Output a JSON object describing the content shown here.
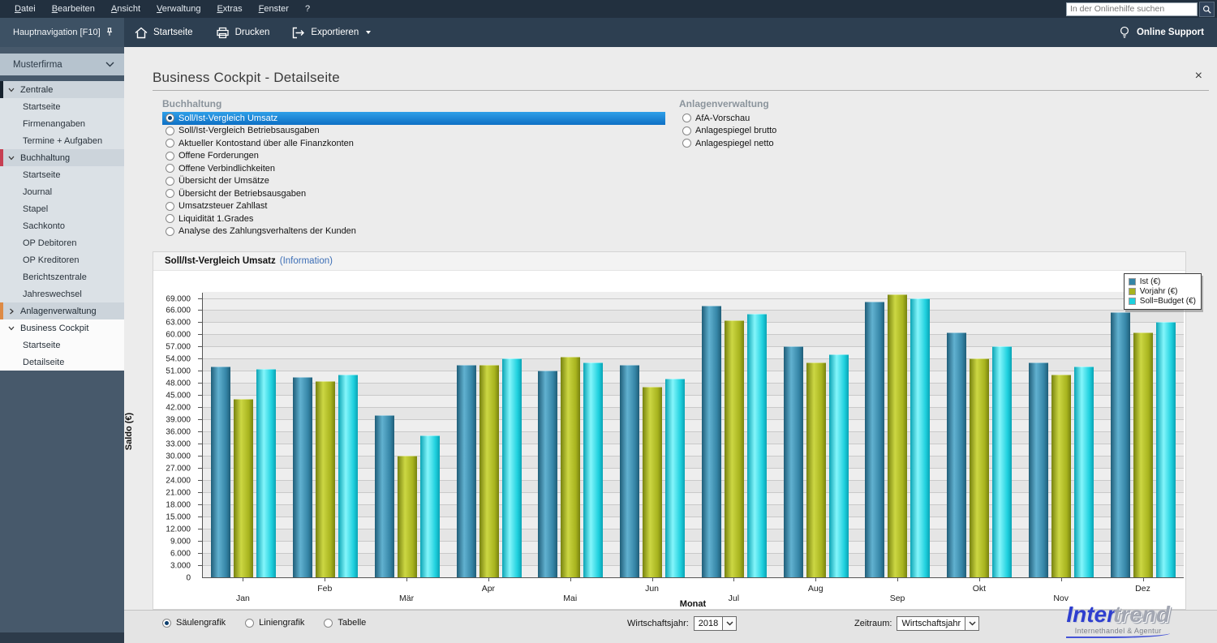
{
  "menubar": {
    "items": [
      "Datei",
      "Bearbeiten",
      "Ansicht",
      "Verwaltung",
      "Extras",
      "Fenster",
      "?"
    ],
    "search_placeholder": "In der Onlinehilfe suchen"
  },
  "toolbar": {
    "hauptnavigation_label": "Hauptnavigation [F10]",
    "startseite_label": "Startseite",
    "drucken_label": "Drucken",
    "exportieren_label": "Exportieren",
    "online_support_label": "Online Support"
  },
  "sidebar": {
    "company": "Musterfirma",
    "sections": [
      {
        "label": "Zentrale",
        "expanded": true,
        "accent": "#16222e",
        "highlight": false,
        "items": [
          "Startseite",
          "Firmenangaben",
          "Termine + Aufgaben"
        ]
      },
      {
        "label": "Buchhaltung",
        "expanded": true,
        "accent": "#c63f52",
        "highlight": false,
        "items": [
          "Startseite",
          "Journal",
          "Stapel",
          "Sachkonto",
          "OP Debitoren",
          "OP Kreditoren",
          "Berichtszentrale",
          "Jahreswechsel"
        ]
      },
      {
        "label": "Anlagenverwaltung",
        "expanded": false,
        "accent": "#dd8a45",
        "highlight": false,
        "items": []
      },
      {
        "label": "Business Cockpit",
        "expanded": true,
        "accent": "",
        "highlight": true,
        "items": [
          "Startseite",
          "Detailseite"
        ]
      }
    ]
  },
  "content": {
    "title": "Business Cockpit - Detailseite",
    "close_label": "×",
    "groups": [
      {
        "title": "Buchhaltung",
        "selected_index": 0,
        "options": [
          "Soll/Ist-Vergleich Umsatz",
          "Soll/Ist-Vergleich Betriebsausgaben",
          "Aktueller Kontostand über alle Finanzkonten",
          "Offene Forderungen",
          "Offene Verbindlichkeiten",
          "Übersicht der Umsätze",
          "Übersicht der Betriebsausgaben",
          "Umsatzsteuer Zahllast",
          "Liquidität 1.Grades",
          "Analyse des Zahlungsverhaltens der Kunden"
        ]
      },
      {
        "title": "Anlagenverwaltung",
        "selected_index": -1,
        "options": [
          "AfA-Vorschau",
          "Anlagespiegel brutto",
          "Anlagespiegel netto"
        ]
      }
    ],
    "panel_title": "Soll/Ist-Vergleich Umsatz",
    "panel_link": "(Information)"
  },
  "chart_data": {
    "type": "bar",
    "title": "Soll/Ist-Vergleich Umsatz",
    "xlabel": "Monat",
    "ylabel": "Saldo (€)",
    "ylim": [
      0,
      70500
    ],
    "ytick_step": 3000,
    "ytick_max": 69000,
    "grid": true,
    "legend_position": "top-right",
    "categories": [
      "Jan",
      "Feb",
      "Mär",
      "Apr",
      "Mai",
      "Jun",
      "Jul",
      "Aug",
      "Sep",
      "Okt",
      "Nov",
      "Dez"
    ],
    "series": [
      {
        "name": "Ist (€)",
        "color": "#3585a6",
        "color_light": "#61b1d0",
        "color_dark": "#1f5d78",
        "values": [
          52000,
          49500,
          40000,
          52500,
          51000,
          52500,
          67000,
          57000,
          68000,
          60500,
          53000,
          65500
        ]
      },
      {
        "name": "Vorjahr (€)",
        "color": "#a7b31e",
        "color_light": "#ccd743",
        "color_dark": "#77820f",
        "values": [
          44000,
          48500,
          30000,
          52500,
          54500,
          47000,
          63500,
          53000,
          70000,
          54000,
          50000,
          60500
        ]
      },
      {
        "name": "Soll=Budget (€)",
        "color": "#1fd0de",
        "color_light": "#84f6fb",
        "color_dark": "#0aa3b4",
        "values": [
          51500,
          50000,
          35000,
          54000,
          53000,
          49000,
          65000,
          55000,
          69000,
          57000,
          52000,
          63000
        ]
      }
    ]
  },
  "footer": {
    "view_options": [
      "Säulengrafik",
      "Liniengrafik",
      "Tabelle"
    ],
    "selected_view": 0,
    "wirtschaftsjahr_label": "Wirtschaftsjahr:",
    "wirtschaftsjahr_value": "2018",
    "zeitraum_label": "Zeitraum:",
    "zeitraum_value": "Wirtschaftsjahr"
  },
  "logo": {
    "part1": "Inter",
    "part2": "trend",
    "subtitle": "Internethandel & Agentur"
  }
}
